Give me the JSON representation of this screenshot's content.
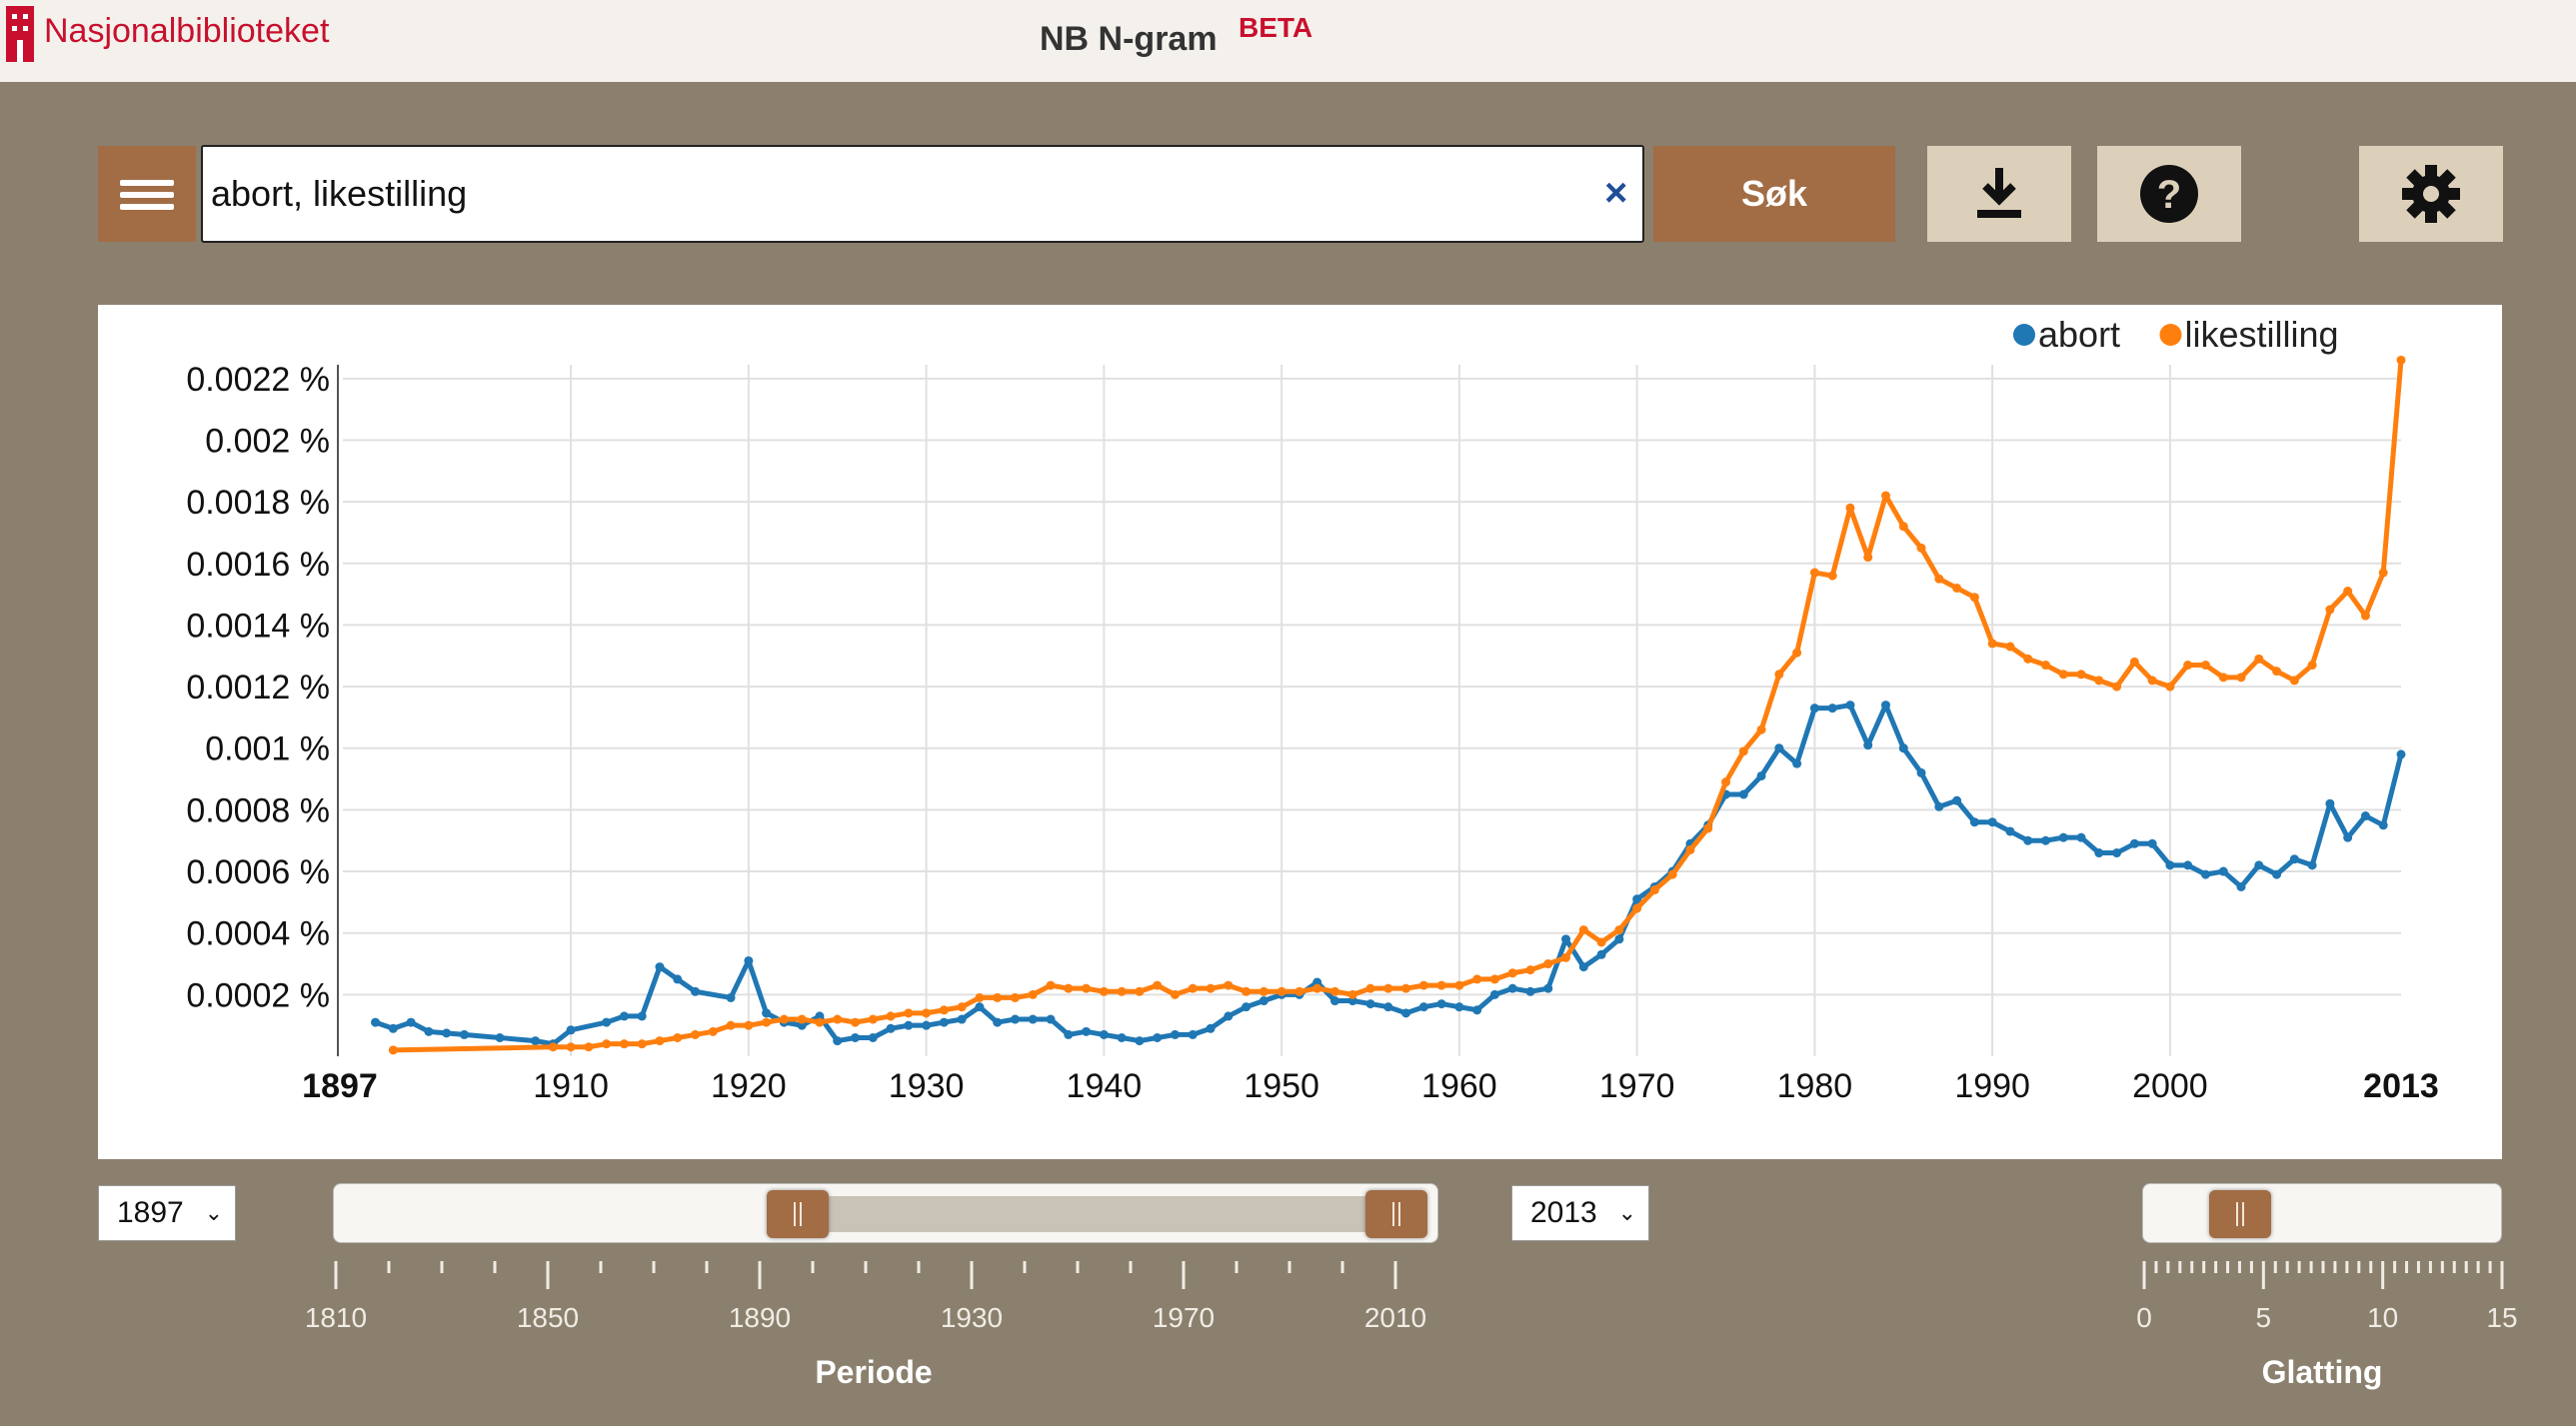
{
  "header": {
    "logo_text": "Nasjonalbiblioteket",
    "app_title": "NB N-gram",
    "app_badge": "BETA"
  },
  "search": {
    "value": "abort, likestilling",
    "clear_icon": "close-icon",
    "submit_label": "Søk"
  },
  "toolbar": {
    "menu_icon": "hamburger-menu-icon",
    "download_icon": "download-icon",
    "help_icon": "help-icon",
    "settings_icon": "gear-icon"
  },
  "colors": {
    "accent": "#a26c45",
    "background": "#8b806e",
    "abort": "#1f77b4",
    "likestilling": "#ff7f0e"
  },
  "chart_data": {
    "type": "line",
    "title": "",
    "xlabel": "",
    "ylabel": "",
    "xlim": [
      1897,
      2013
    ],
    "ylim": [
      0,
      0.0023
    ],
    "y_ticks": [
      0.0002,
      0.0004,
      0.0006,
      0.0008,
      0.001,
      0.0012,
      0.0014,
      0.0016,
      0.0018,
      0.002,
      0.0022
    ],
    "y_tick_labels": [
      "0.0002 %",
      "0.0004 %",
      "0.0006 %",
      "0.0008 %",
      "0.001 %",
      "0.0012 %",
      "0.0014 %",
      "0.0016 %",
      "0.0018 %",
      "0.002 %",
      "0.0022 %"
    ],
    "x_ticks": [
      1897,
      1910,
      1920,
      1930,
      1940,
      1950,
      1960,
      1970,
      1980,
      1990,
      2000,
      2013
    ],
    "x_tick_labels": [
      "1897",
      "1910",
      "1920",
      "1930",
      "1940",
      "1950",
      "1960",
      "1970",
      "1980",
      "1990",
      "2000",
      "2013"
    ],
    "x_bold_ticks": [
      "1897",
      "2013"
    ],
    "grid": true,
    "legend_position": "top-right",
    "series": [
      {
        "name": "abort",
        "color": "#1f77b4",
        "x": [
          1899,
          1900,
          1901,
          1902,
          1903,
          1904,
          1906,
          1908,
          1909,
          1910,
          1912,
          1913,
          1914,
          1915,
          1916,
          1917,
          1919,
          1920,
          1921,
          1922,
          1923,
          1924,
          1925,
          1926,
          1927,
          1928,
          1929,
          1930,
          1931,
          1932,
          1933,
          1934,
          1935,
          1936,
          1937,
          1938,
          1939,
          1940,
          1941,
          1942,
          1943,
          1944,
          1945,
          1946,
          1947,
          1948,
          1949,
          1950,
          1951,
          1952,
          1953,
          1954,
          1955,
          1956,
          1957,
          1958,
          1959,
          1960,
          1961,
          1962,
          1963,
          1964,
          1965,
          1966,
          1967,
          1968,
          1969,
          1970,
          1971,
          1972,
          1973,
          1974,
          1975,
          1976,
          1977,
          1978,
          1979,
          1980,
          1981,
          1982,
          1983,
          1984,
          1985,
          1986,
          1987,
          1988,
          1989,
          1990,
          1991,
          1992,
          1993,
          1994,
          1995,
          1996,
          1997,
          1998,
          1999,
          2000,
          2001,
          2002,
          2003,
          2004,
          2005,
          2006,
          2007,
          2008,
          2009,
          2010,
          2011,
          2012,
          2013
        ],
        "values": [
          0.00011,
          9e-05,
          0.00011,
          8e-05,
          7.5e-05,
          7e-05,
          6e-05,
          5e-05,
          4e-05,
          8.5e-05,
          0.00011,
          0.00013,
          0.00013,
          0.00029,
          0.00025,
          0.00021,
          0.00019,
          0.00031,
          0.00014,
          0.00011,
          0.0001,
          0.00013,
          5e-05,
          6e-05,
          6e-05,
          9e-05,
          0.0001,
          0.0001,
          0.00011,
          0.00012,
          0.00016,
          0.00011,
          0.00012,
          0.00012,
          0.00012,
          7e-05,
          8e-05,
          7e-05,
          6e-05,
          5e-05,
          6e-05,
          7e-05,
          7e-05,
          9e-05,
          0.00013,
          0.00016,
          0.00018,
          0.0002,
          0.0002,
          0.00024,
          0.00018,
          0.00018,
          0.00017,
          0.00016,
          0.00014,
          0.00016,
          0.00017,
          0.00016,
          0.00015,
          0.0002,
          0.00022,
          0.00021,
          0.00022,
          0.00038,
          0.00029,
          0.00033,
          0.00038,
          0.00051,
          0.00055,
          0.0006,
          0.00069,
          0.00075,
          0.00085,
          0.00085,
          0.00091,
          0.001,
          0.00095,
          0.00113,
          0.00113,
          0.00114,
          0.00101,
          0.00114,
          0.001,
          0.00092,
          0.00081,
          0.00083,
          0.00076,
          0.00076,
          0.00073,
          0.0007,
          0.0007,
          0.00071,
          0.00071,
          0.00066,
          0.00066,
          0.00069,
          0.00069,
          0.00062,
          0.00062,
          0.00059,
          0.0006,
          0.00055,
          0.00062,
          0.00059,
          0.00064,
          0.00062,
          0.00082,
          0.00071,
          0.00078,
          0.00075,
          0.00098
        ]
      },
      {
        "name": "likestilling",
        "color": "#ff7f0e",
        "x": [
          1900,
          1909,
          1910,
          1911,
          1912,
          1913,
          1914,
          1915,
          1916,
          1917,
          1918,
          1919,
          1920,
          1921,
          1922,
          1923,
          1924,
          1925,
          1926,
          1927,
          1928,
          1929,
          1930,
          1931,
          1932,
          1933,
          1934,
          1935,
          1936,
          1937,
          1938,
          1939,
          1940,
          1941,
          1942,
          1943,
          1944,
          1945,
          1946,
          1947,
          1948,
          1949,
          1950,
          1951,
          1952,
          1953,
          1954,
          1955,
          1956,
          1957,
          1958,
          1959,
          1960,
          1961,
          1962,
          1963,
          1964,
          1965,
          1966,
          1967,
          1968,
          1969,
          1970,
          1971,
          1972,
          1973,
          1974,
          1975,
          1976,
          1977,
          1978,
          1979,
          1980,
          1981,
          1982,
          1983,
          1984,
          1985,
          1986,
          1987,
          1988,
          1989,
          1990,
          1991,
          1992,
          1993,
          1994,
          1995,
          1996,
          1997,
          1998,
          1999,
          2000,
          2001,
          2002,
          2003,
          2004,
          2005,
          2006,
          2007,
          2008,
          2009,
          2010,
          2011,
          2012,
          2013
        ],
        "values": [
          2e-05,
          3e-05,
          3e-05,
          3e-05,
          4e-05,
          4e-05,
          4e-05,
          5e-05,
          6e-05,
          7e-05,
          8e-05,
          0.0001,
          0.0001,
          0.00011,
          0.00012,
          0.00012,
          0.00011,
          0.00012,
          0.00011,
          0.00012,
          0.00013,
          0.00014,
          0.00014,
          0.00015,
          0.00016,
          0.00019,
          0.00019,
          0.00019,
          0.0002,
          0.00023,
          0.00022,
          0.00022,
          0.00021,
          0.00021,
          0.00021,
          0.00023,
          0.0002,
          0.00022,
          0.00022,
          0.00023,
          0.00021,
          0.00021,
          0.00021,
          0.00021,
          0.00022,
          0.00021,
          0.0002,
          0.00022,
          0.00022,
          0.00022,
          0.00023,
          0.00023,
          0.00023,
          0.00025,
          0.00025,
          0.00027,
          0.00028,
          0.0003,
          0.00032,
          0.00041,
          0.00037,
          0.00041,
          0.00048,
          0.00054,
          0.00059,
          0.00067,
          0.00074,
          0.00089,
          0.00099,
          0.00106,
          0.00124,
          0.00131,
          0.00157,
          0.00156,
          0.00178,
          0.00162,
          0.00182,
          0.00172,
          0.00165,
          0.00155,
          0.00152,
          0.00149,
          0.00134,
          0.00133,
          0.00129,
          0.00127,
          0.00124,
          0.00124,
          0.00122,
          0.0012,
          0.00128,
          0.00122,
          0.0012,
          0.00127,
          0.00127,
          0.00123,
          0.00123,
          0.00129,
          0.00125,
          0.00122,
          0.00127,
          0.00145,
          0.00151,
          0.00143,
          0.00157,
          0.00226
        ]
      }
    ]
  },
  "controls": {
    "period_start": "1897",
    "period_end": "2013",
    "period_label": "Periode",
    "period_ticks": [
      "1810",
      "1850",
      "1890",
      "1930",
      "1970",
      "2010"
    ],
    "period_range": [
      1810,
      2010
    ],
    "period_handle_start": 1897,
    "period_handle_end": 2010,
    "smoothing_label": "Glatting",
    "smoothing_ticks": [
      "0",
      "5",
      "10",
      "15"
    ],
    "smoothing_range": [
      0,
      15
    ],
    "smoothing_value": 4
  }
}
